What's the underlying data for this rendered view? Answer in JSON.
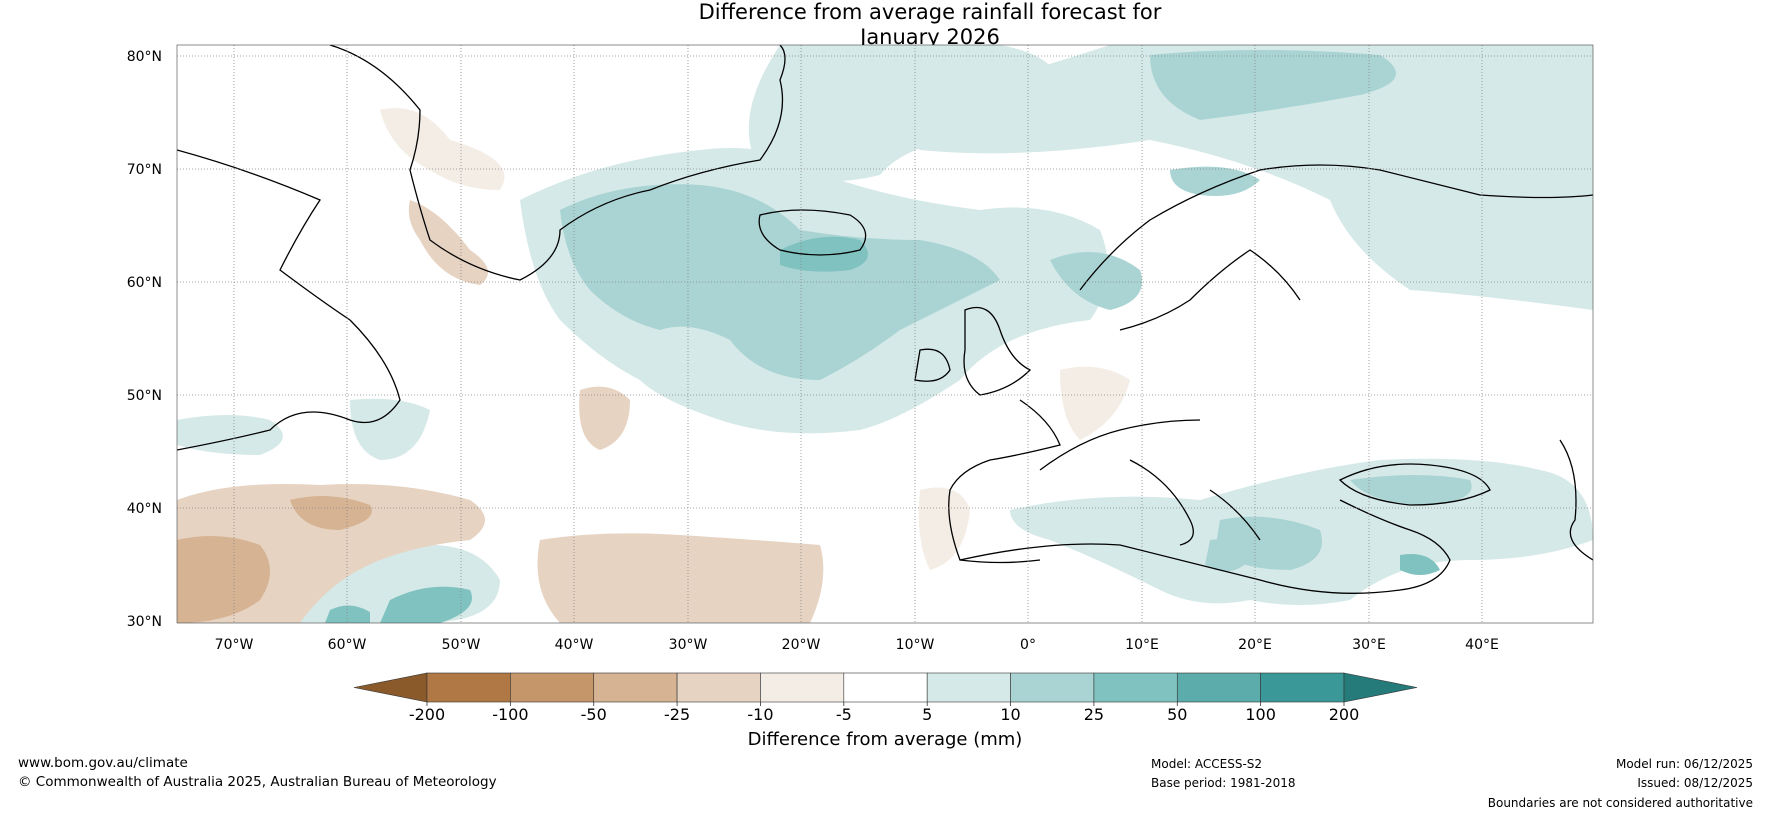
{
  "title": {
    "line1": "Difference from average rainfall forecast for",
    "line2": "January 2026"
  },
  "map": {
    "lat_labels": [
      "80°N",
      "70°N",
      "60°N",
      "50°N",
      "40°N",
      "30°N"
    ],
    "lon_labels": [
      "70°W",
      "60°W",
      "50°W",
      "40°W",
      "30°W",
      "20°W",
      "10°W",
      "0°",
      "10°E",
      "20°E",
      "30°E",
      "40°E"
    ]
  },
  "colorbar": {
    "colors": [
      "#8b5a2b",
      "#b07845",
      "#c4966a",
      "#d6b393",
      "#e6d3c2",
      "#f3ede6",
      "#ffffff",
      "#d5e9e8",
      "#a9d4d3",
      "#80c2c0",
      "#5bacab",
      "#3a9998",
      "#247b7a"
    ],
    "ticks": [
      "-200",
      "-100",
      "-50",
      "-25",
      "-10",
      "-5",
      "5",
      "10",
      "25",
      "50",
      "100",
      "200"
    ],
    "label": "Difference from average (mm)"
  },
  "footer": {
    "website": "www.bom.gov.au/climate",
    "copyright": "© Commonwealth of Australia 2025, Australian Bureau of Meteorology",
    "model": "Model: ACCESS-S2",
    "base_period": "Base period: 1981-2018",
    "model_run": "Model run: 06/12/2025",
    "issued": "Issued: 08/12/2025",
    "disclaimer": "Boundaries are not considered authoritative"
  }
}
